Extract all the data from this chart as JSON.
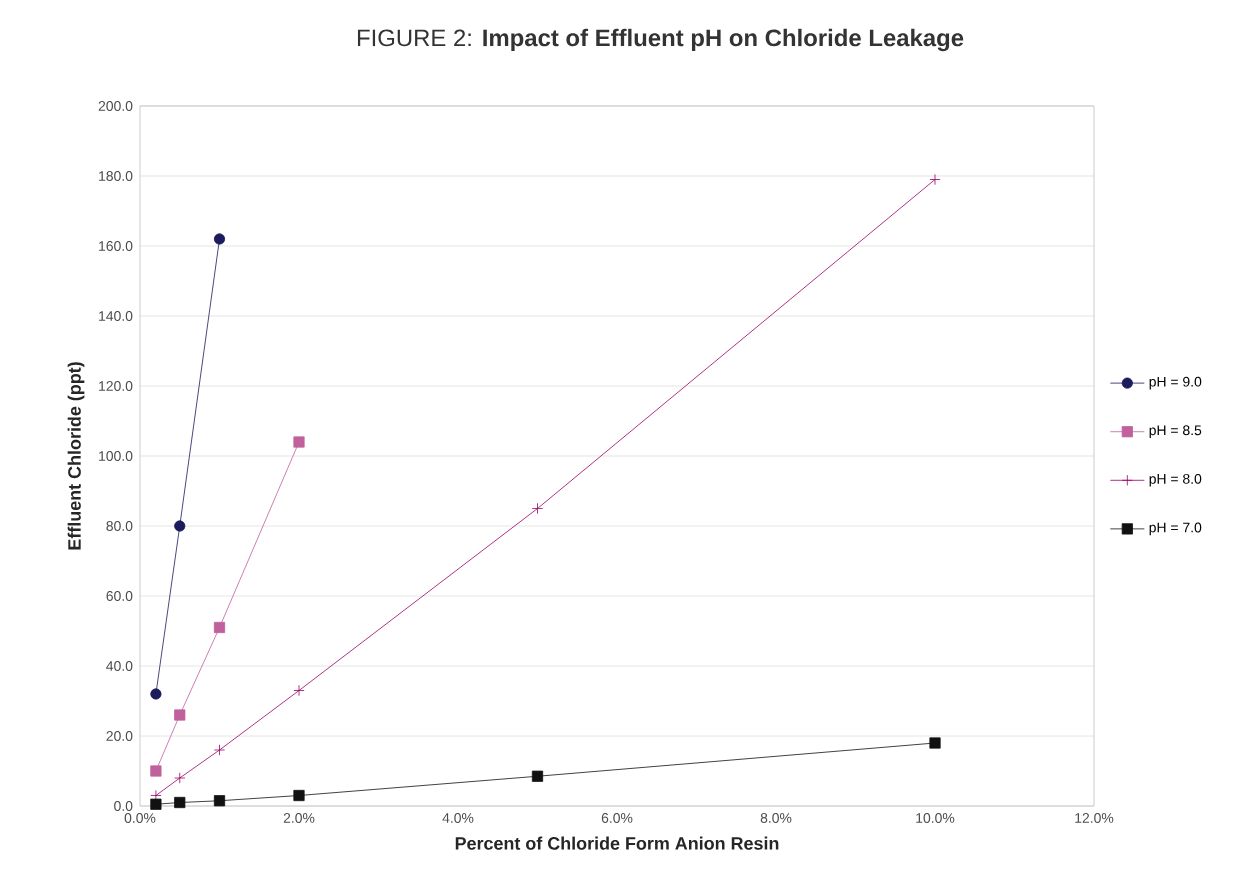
{
  "chart_data": {
    "type": "line",
    "title": "FIGURE 2: **Impact of Effluent pH on Chloride Leakage**",
    "xlabel": "Percent of Chloride Form Anion Resin",
    "ylabel": "Effluent Chloride (ppt)",
    "xlim": [
      0,
      12
    ],
    "ylim": [
      0,
      200
    ],
    "xticks": [
      {
        "value": 0,
        "label": "0.0%"
      },
      {
        "value": 2,
        "label": "2.0%"
      },
      {
        "value": 4,
        "label": "4.0%"
      },
      {
        "value": 6,
        "label": "6.0%"
      },
      {
        "value": 8,
        "label": "8.0%"
      },
      {
        "value": 10,
        "label": "10.0%"
      },
      {
        "value": 12,
        "label": "12.0%"
      }
    ],
    "yticks": [
      {
        "value": 0,
        "label": "0.0"
      },
      {
        "value": 20,
        "label": "20.0"
      },
      {
        "value": 40,
        "label": "40.0"
      },
      {
        "value": 60,
        "label": "60.0"
      },
      {
        "value": 80,
        "label": "80.0"
      },
      {
        "value": 100,
        "label": "100.0"
      },
      {
        "value": 120,
        "label": "120.0"
      },
      {
        "value": 140,
        "label": "140.0"
      },
      {
        "value": 160,
        "label": "160.0"
      },
      {
        "value": 180,
        "label": "180.0"
      },
      {
        "value": 200,
        "label": "200.0"
      }
    ],
    "grid": "y",
    "legend": "right",
    "series": [
      {
        "name": "pH = 9.0",
        "color": "#1c1c5c",
        "marker": "circle",
        "x": [
          0.2,
          0.5,
          1.0
        ],
        "values": [
          32,
          80,
          162
        ]
      },
      {
        "name": "pH = 8.5",
        "color": "#c0609c",
        "marker": "square",
        "x": [
          0.2,
          0.5,
          1.0,
          2.0
        ],
        "values": [
          10,
          26,
          51,
          104
        ]
      },
      {
        "name": "pH = 8.0",
        "color": "#990066",
        "marker": "cross",
        "x": [
          0.2,
          0.5,
          1.0,
          2.0,
          5.0,
          10.0
        ],
        "values": [
          3,
          8,
          16,
          33,
          85,
          179
        ]
      },
      {
        "name": "pH = 7.0",
        "color": "#111111",
        "marker": "square",
        "x": [
          0.2,
          0.5,
          1.0,
          2.0,
          5.0,
          10.0
        ],
        "values": [
          0.5,
          1,
          1.5,
          3,
          8.5,
          18
        ]
      }
    ]
  }
}
